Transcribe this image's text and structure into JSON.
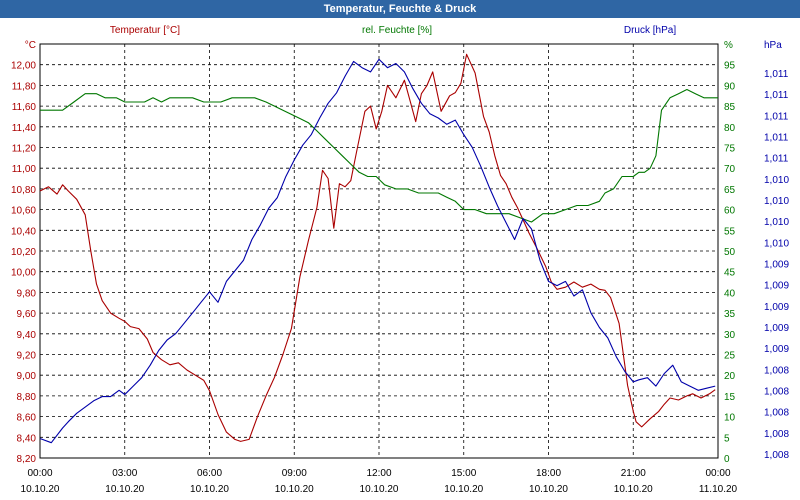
{
  "window": {
    "title": "Temperatur, Feuchte & Druck"
  },
  "colors": {
    "title_bar": "#2f66a4",
    "temperature": "#aa0000",
    "humidity": "#007700",
    "pressure": "#0000aa",
    "grid": "#000000"
  },
  "chart_data": {
    "type": "line",
    "title": "Temperatur, Feuchte & Druck",
    "grid": true,
    "x_ticks": [
      {
        "time": "00:00",
        "date": "10.10.20"
      },
      {
        "time": "03:00",
        "date": "10.10.20"
      },
      {
        "time": "06:00",
        "date": "10.10.20"
      },
      {
        "time": "09:00",
        "date": "10.10.20"
      },
      {
        "time": "12:00",
        "date": "10.10.20"
      },
      {
        "time": "15:00",
        "date": "10.10.20"
      },
      {
        "time": "18:00",
        "date": "10.10.20"
      },
      {
        "time": "21:00",
        "date": "10.10.20"
      },
      {
        "time": "00:00",
        "date": "11.10.20"
      }
    ],
    "xlim_hours": [
      0,
      24
    ],
    "axes": {
      "temperature": {
        "label": "Temperatur [°C]",
        "unit": "°C",
        "ylim": [
          8.2,
          12.2
        ],
        "ticks": [
          "8,20",
          "8,40",
          "8,60",
          "8,80",
          "9,00",
          "9,20",
          "9,40",
          "9,60",
          "9,80",
          "10,00",
          "10,20",
          "10,40",
          "10,60",
          "10,80",
          "11,00",
          "11,20",
          "11,40",
          "11,60",
          "11,80",
          "12,00"
        ]
      },
      "humidity": {
        "label": "rel. Feuchte [%]",
        "unit": "%",
        "ylim": [
          0,
          100
        ],
        "ticks": [
          "0",
          "5",
          "10",
          "15",
          "20",
          "25",
          "30",
          "35",
          "40",
          "45",
          "50",
          "55",
          "60",
          "65",
          "70",
          "75",
          "80",
          "85",
          "90",
          "95"
        ]
      },
      "pressure": {
        "label": "Druck [hPa]",
        "unit": "hPa",
        "ticks": [
          "1,008",
          "1,008",
          "1,008",
          "1,008",
          "1,008",
          "1,009",
          "1,009",
          "1,009",
          "1,009",
          "1,009",
          "1,010",
          "1,010",
          "1,010",
          "1,010",
          "1,011",
          "1,011",
          "1,011",
          "1,011",
          "1,011"
        ]
      }
    },
    "series": [
      {
        "name": "Temperatur [°C]",
        "axis": "temperature",
        "x": [
          0,
          0.3,
          0.6,
          0.8,
          1.0,
          1.3,
          1.6,
          1.8,
          2.0,
          2.2,
          2.5,
          2.8,
          3.0,
          3.2,
          3.5,
          3.8,
          4.0,
          4.3,
          4.6,
          4.9,
          5.2,
          5.5,
          5.8,
          6.0,
          6.3,
          6.6,
          6.9,
          7.1,
          7.4,
          7.7,
          8.0,
          8.3,
          8.6,
          8.9,
          9.2,
          9.5,
          9.8,
          10.0,
          10.2,
          10.4,
          10.6,
          10.8,
          11.0,
          11.2,
          11.5,
          11.7,
          11.9,
          12.1,
          12.3,
          12.6,
          12.9,
          13.1,
          13.3,
          13.5,
          13.7,
          13.9,
          14.2,
          14.5,
          14.7,
          14.9,
          15.1,
          15.4,
          15.7,
          15.9,
          16.1,
          16.3,
          16.5,
          16.7,
          16.9,
          17.1,
          17.3,
          17.6,
          17.9,
          18.1,
          18.3,
          18.6,
          18.9,
          19.2,
          19.5,
          19.8,
          20.0,
          20.2,
          20.5,
          20.8,
          21.0,
          21.1,
          21.3,
          21.6,
          21.9,
          22.1,
          22.3,
          22.6,
          22.9,
          23.1,
          23.4,
          23.7,
          23.9
        ],
        "y": [
          10.78,
          10.82,
          10.75,
          10.84,
          10.78,
          10.7,
          10.55,
          10.2,
          9.88,
          9.72,
          9.6,
          9.55,
          9.52,
          9.47,
          9.45,
          9.35,
          9.22,
          9.15,
          9.1,
          9.12,
          9.05,
          9.0,
          8.95,
          8.85,
          8.62,
          8.45,
          8.38,
          8.36,
          8.38,
          8.6,
          8.8,
          8.98,
          9.2,
          9.45,
          9.95,
          10.3,
          10.62,
          10.98,
          10.9,
          10.42,
          10.85,
          10.82,
          10.88,
          11.15,
          11.55,
          11.6,
          11.38,
          11.55,
          11.8,
          11.68,
          11.85,
          11.65,
          11.45,
          11.72,
          11.8,
          11.93,
          11.55,
          11.7,
          11.73,
          11.82,
          12.1,
          11.92,
          11.5,
          11.35,
          11.12,
          10.93,
          10.85,
          10.72,
          10.62,
          10.5,
          10.38,
          10.22,
          10.05,
          9.9,
          9.83,
          9.85,
          9.9,
          9.85,
          9.88,
          9.83,
          9.82,
          9.75,
          9.5,
          8.9,
          8.65,
          8.55,
          8.5,
          8.58,
          8.65,
          8.72,
          8.78,
          8.76,
          8.8,
          8.82,
          8.78,
          8.82,
          8.86
        ]
      },
      {
        "name": "rel. Feuchte [%]",
        "axis": "humidity",
        "x": [
          0,
          0.4,
          0.8,
          1.2,
          1.6,
          2.0,
          2.3,
          2.7,
          3.0,
          3.3,
          3.7,
          4.0,
          4.3,
          4.6,
          5.0,
          5.4,
          5.8,
          6.1,
          6.4,
          6.8,
          7.2,
          7.6,
          8.0,
          8.3,
          8.6,
          8.9,
          9.2,
          9.5,
          9.8,
          10.1,
          10.4,
          10.7,
          11.0,
          11.3,
          11.6,
          11.9,
          12.2,
          12.6,
          13.0,
          13.4,
          13.8,
          14.1,
          14.4,
          14.7,
          15.0,
          15.4,
          15.8,
          16.2,
          16.6,
          17.0,
          17.4,
          17.8,
          18.2,
          18.6,
          19.0,
          19.4,
          19.8,
          20.0,
          20.3,
          20.6,
          21.0,
          21.2,
          21.4,
          21.6,
          21.8,
          22.0,
          22.3,
          22.6,
          22.9,
          23.2,
          23.5,
          23.8,
          24.0
        ],
        "y": [
          84,
          84,
          84,
          86,
          88,
          88,
          87,
          87,
          86,
          86,
          86,
          87,
          86,
          87,
          87,
          87,
          86,
          86,
          86,
          87,
          87,
          87,
          86,
          85,
          84,
          83,
          82,
          81,
          79,
          77,
          75,
          73,
          71,
          69,
          68,
          68,
          66,
          65,
          65,
          64,
          64,
          64,
          63,
          62,
          60,
          60,
          59,
          59,
          59,
          58,
          57,
          59,
          59,
          60,
          61,
          61,
          62,
          64,
          65,
          68,
          68,
          69,
          69,
          70,
          73,
          84,
          87,
          88,
          89,
          88,
          87,
          87,
          87
        ]
      },
      {
        "name": "Druck [hPa]",
        "axis": "pressure",
        "x": [
          0,
          0.4,
          0.8,
          1.0,
          1.3,
          1.6,
          1.9,
          2.2,
          2.5,
          2.8,
          3.0,
          3.3,
          3.6,
          3.9,
          4.2,
          4.5,
          4.8,
          5.1,
          5.4,
          5.7,
          6.0,
          6.3,
          6.6,
          6.9,
          7.2,
          7.5,
          7.8,
          8.1,
          8.4,
          8.7,
          9.0,
          9.3,
          9.6,
          9.9,
          10.2,
          10.5,
          10.8,
          11.1,
          11.4,
          11.7,
          12.0,
          12.3,
          12.6,
          12.9,
          13.2,
          13.5,
          13.8,
          14.1,
          14.4,
          14.7,
          15.0,
          15.3,
          15.6,
          15.9,
          16.2,
          16.5,
          16.8,
          17.1,
          17.4,
          17.7,
          18.0,
          18.3,
          18.6,
          18.9,
          19.2,
          19.5,
          19.8,
          20.1,
          20.4,
          20.7,
          21.0,
          21.2,
          21.5,
          21.8,
          22.1,
          22.4,
          22.7,
          23.0,
          23.3,
          23.6,
          23.9
        ],
        "y": [
          1.00785,
          1.00783,
          1.0079,
          1.00793,
          1.00797,
          1.008,
          1.00803,
          1.00805,
          1.00805,
          1.00808,
          1.00806,
          1.0081,
          1.00814,
          1.0082,
          1.00827,
          1.00832,
          1.00835,
          1.0084,
          1.00845,
          1.0085,
          1.00855,
          1.0085,
          1.0086,
          1.00865,
          1.0087,
          1.0088,
          1.00887,
          1.00895,
          1.009,
          1.0091,
          1.00918,
          1.00925,
          1.0093,
          1.00938,
          1.00945,
          1.0095,
          1.00958,
          1.00965,
          1.00962,
          1.0096,
          1.00966,
          1.00962,
          1.00964,
          1.0096,
          1.00952,
          1.00945,
          1.0094,
          1.00938,
          1.00935,
          1.00937,
          1.0093,
          1.00924,
          1.00915,
          1.00905,
          1.00896,
          1.00888,
          1.0088,
          1.0089,
          1.00885,
          1.0087,
          1.0086,
          1.00858,
          1.0086,
          1.00853,
          1.00856,
          1.00845,
          1.00838,
          1.00833,
          1.00824,
          1.00817,
          1.00812,
          1.00813,
          1.00814,
          1.0081,
          1.00816,
          1.0082,
          1.00812,
          1.0081,
          1.00808,
          1.00809,
          1.0081
        ]
      }
    ]
  }
}
